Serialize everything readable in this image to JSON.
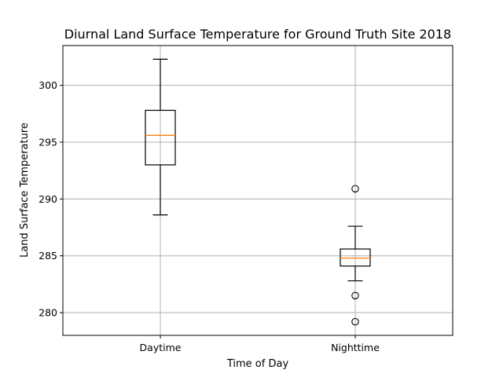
{
  "chart_data": {
    "type": "box",
    "title": "Diurnal Land Surface Temperature for Ground Truth Site 2018",
    "xlabel": "Time of Day",
    "ylabel": "Land Surface Temperature",
    "categories": [
      "Daytime",
      "Nighttime"
    ],
    "boxes": [
      {
        "category": "Daytime",
        "whisker_low": 288.6,
        "q1": 293.0,
        "median": 295.6,
        "q3": 297.8,
        "whisker_high": 302.3,
        "fliers": []
      },
      {
        "category": "Nighttime",
        "whisker_low": 282.8,
        "q1": 284.1,
        "median": 284.8,
        "q3": 285.6,
        "whisker_high": 287.6,
        "fliers": [
          290.9,
          281.5,
          279.2
        ]
      }
    ],
    "ylim": [
      278.0,
      303.5
    ],
    "yticks": [
      280,
      285,
      290,
      295,
      300
    ],
    "grid": true,
    "colors": {
      "box": "#000000",
      "median": "#ff7f0e",
      "grid": "#b0b0b0"
    }
  }
}
